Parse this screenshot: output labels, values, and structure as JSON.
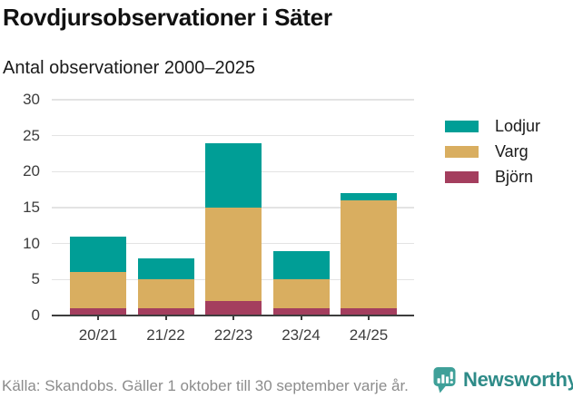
{
  "title": "Rovdjursobservationer i Säter",
  "subtitle": "Antal observationer 2000–2025",
  "source": "Källa: Skandobs. Gäller 1 oktober till 30 september varje år.",
  "branding": {
    "name": "Newsworthy",
    "icon": "newsworthy-chart-bubble-icon",
    "icon_color": "#3fa099",
    "text_color": "#2e8b88"
  },
  "colors": {
    "lodjur": "#009E96",
    "varg": "#D9AE60",
    "bjorn": "#A43E5E",
    "gridline": "#e3e3e3",
    "axis": "#3d3d3d",
    "footer_text": "#8c8c8c"
  },
  "chart_data": {
    "type": "bar",
    "stacked": true,
    "categories": [
      "20/21",
      "21/22",
      "22/23",
      "23/24",
      "24/25"
    ],
    "series": [
      {
        "name": "Björn",
        "color": "#A43E5E",
        "values": [
          1,
          1,
          2,
          1,
          1
        ]
      },
      {
        "name": "Varg",
        "color": "#D9AE60",
        "values": [
          5,
          4,
          13,
          4,
          15
        ]
      },
      {
        "name": "Lodjur",
        "color": "#009E96",
        "values": [
          5,
          3,
          9,
          4,
          1
        ]
      }
    ],
    "totals": [
      11,
      8,
      24,
      9,
      17
    ],
    "title": "Rovdjursobservationer i Säter",
    "subtitle": "Antal observationer 2000–2025",
    "xlabel": "",
    "ylabel": "",
    "ylim": [
      0,
      30
    ],
    "yticks": [
      0,
      5,
      10,
      15,
      20,
      25,
      30
    ],
    "grid": true,
    "legend_position": "right",
    "legend": [
      {
        "label": "Lodjur",
        "color": "#009E96"
      },
      {
        "label": "Varg",
        "color": "#D9AE60"
      },
      {
        "label": "Björn",
        "color": "#A43E5E"
      }
    ]
  }
}
